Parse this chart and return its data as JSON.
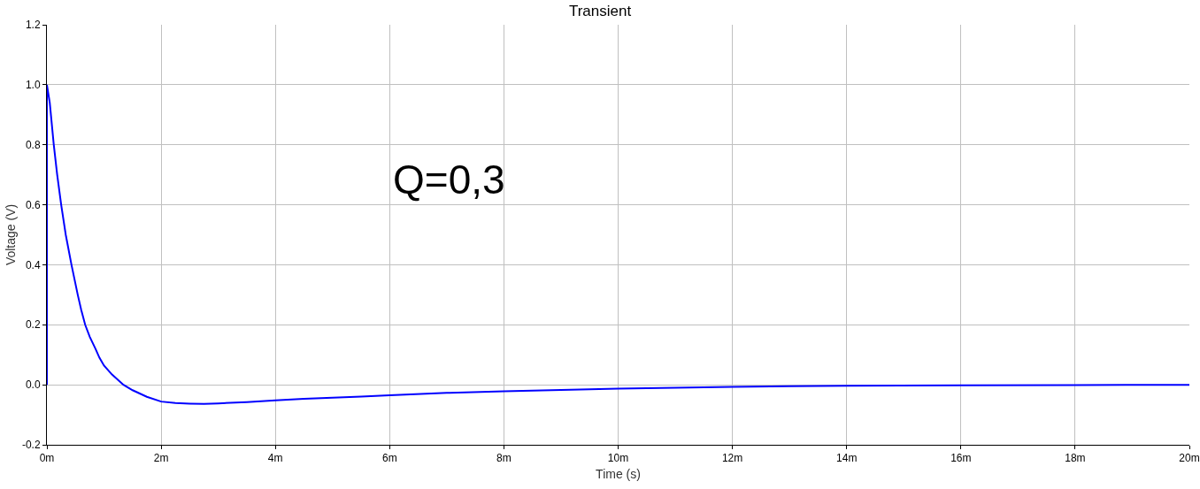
{
  "chart_data": {
    "type": "line",
    "title": "Transient",
    "xlabel": "Time (s)",
    "ylabel": "Voltage (V)",
    "annotations": [
      "Q=0,3"
    ],
    "x": [
      0,
      0,
      0.05,
      0.12,
      0.18,
      0.25,
      0.33,
      0.43,
      0.54,
      0.6,
      0.67,
      0.75,
      0.85,
      0.92,
      1.0,
      1.14,
      1.34,
      1.5,
      1.75,
      2.0,
      2.25,
      2.5,
      2.75,
      3.0,
      3.5,
      4.0,
      4.5,
      5,
      5.5,
      6,
      7,
      8,
      9,
      10,
      11,
      12,
      13,
      14,
      16,
      18,
      20
    ],
    "series": [
      {
        "color": "#0000ff",
        "values": [
          0,
          1.0,
          0.94,
          0.8,
          0.7,
          0.6,
          0.5,
          0.4,
          0.3,
          0.25,
          0.2,
          0.16,
          0.12,
          0.09,
          0.064,
          0.034,
          0.0,
          -0.018,
          -0.04,
          -0.056,
          -0.061,
          -0.063,
          -0.064,
          -0.062,
          -0.058,
          -0.052,
          -0.047,
          -0.043,
          -0.039,
          -0.035,
          -0.027,
          -0.022,
          -0.017,
          -0.013,
          -0.01,
          -0.007,
          -0.005,
          -0.003,
          -0.002,
          -0.001,
          0.0
        ]
      }
    ],
    "xlim": [
      0,
      20
    ],
    "xticks": [
      {
        "value": 0,
        "label": "0m"
      },
      {
        "value": 2,
        "label": "2m"
      },
      {
        "value": 4,
        "label": "4m"
      },
      {
        "value": 6,
        "label": "6m"
      },
      {
        "value": 8,
        "label": "8m"
      },
      {
        "value": 10,
        "label": "10m"
      },
      {
        "value": 12,
        "label": "12m"
      },
      {
        "value": 14,
        "label": "14m"
      },
      {
        "value": 16,
        "label": "16m"
      },
      {
        "value": 18,
        "label": "18m"
      },
      {
        "value": 20,
        "label": "20m"
      }
    ],
    "ylim": [
      -0.2,
      1.2
    ],
    "yticks": [
      -0.2,
      {
        "value": 0,
        "label": "0.0"
      },
      0.2,
      0.4,
      0.6,
      0.8,
      {
        "value": 1,
        "label": "1.0"
      },
      1.2
    ],
    "grid": true,
    "line_style": "solid"
  }
}
